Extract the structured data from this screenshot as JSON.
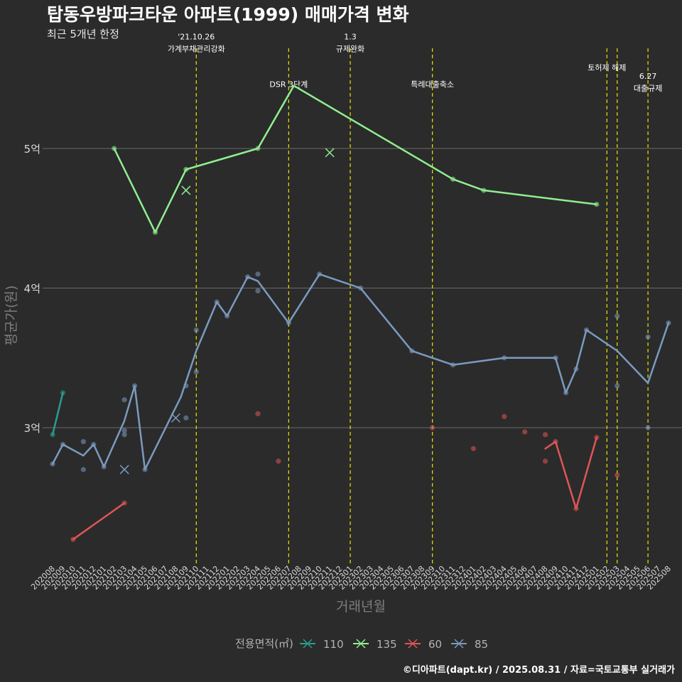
{
  "chart_data": {
    "type": "line",
    "title": "탑동우방파크타운 아파트(1999) 매매가격 변화",
    "subtitle": "최근 5개년 한정",
    "xlabel": "거래년월",
    "ylabel": "평균가(원)",
    "ylim": [
      2.05,
      5.55
    ],
    "yticks": [
      {
        "value": 3,
        "label": "3억"
      },
      {
        "value": 4,
        "label": "4억"
      },
      {
        "value": 5,
        "label": "5억"
      }
    ],
    "categories": [
      "202008",
      "202009",
      "202010",
      "202011",
      "202012",
      "202101",
      "202102",
      "202103",
      "202104",
      "202105",
      "202106",
      "202107",
      "202108",
      "202109",
      "202110",
      "202111",
      "202112",
      "202201",
      "202202",
      "202203",
      "202204",
      "202205",
      "202206",
      "202207",
      "202208",
      "202209",
      "202210",
      "202211",
      "202212",
      "202301",
      "202302",
      "202303",
      "202304",
      "202305",
      "202306",
      "202307",
      "202308",
      "202309",
      "202310",
      "202311",
      "202312",
      "202401",
      "202402",
      "202403",
      "202404",
      "202405",
      "202406",
      "202407",
      "202408",
      "202409",
      "202410",
      "202411",
      "202412",
      "202501",
      "202502",
      "202503",
      "202504",
      "202505",
      "202506",
      "202507",
      "202508"
    ],
    "legend": {
      "title": "전용면적(㎡)",
      "position": "bottom"
    },
    "series": [
      {
        "name": "110",
        "color": "#2a9d8f",
        "line": [
          [
            0,
            2.95
          ],
          [
            1,
            3.25
          ]
        ],
        "points": [
          [
            0,
            2.95
          ],
          [
            1,
            3.25
          ]
        ],
        "crosses": []
      },
      {
        "name": "135",
        "color": "#90ee90",
        "line": [
          [
            6,
            5.0
          ],
          [
            10,
            4.4
          ],
          [
            13,
            4.85
          ],
          [
            20,
            5.0
          ],
          [
            23.5,
            5.45
          ],
          [
            39,
            4.78
          ],
          [
            42,
            4.7
          ],
          [
            53,
            4.6
          ]
        ],
        "points": [
          [
            6,
            5.0
          ],
          [
            10,
            4.4
          ],
          [
            13,
            4.85
          ],
          [
            20,
            5.0
          ],
          [
            39,
            4.78
          ],
          [
            42,
            4.7
          ],
          [
            53,
            4.6
          ]
        ],
        "crosses": [
          [
            13,
            4.7
          ],
          [
            27,
            4.97
          ]
        ]
      },
      {
        "name": "60",
        "color": "#e05555",
        "line_segments": [
          [
            [
              2,
              2.2
            ],
            [
              7,
              2.46
            ]
          ],
          [
            [
              48,
              2.85
            ],
            [
              49,
              2.9
            ],
            [
              51,
              2.42
            ],
            [
              53,
              2.93
            ]
          ]
        ],
        "points": [
          [
            2,
            2.2
          ],
          [
            7,
            2.46
          ],
          [
            20,
            3.1
          ],
          [
            22,
            2.76
          ],
          [
            37,
            3.0
          ],
          [
            41,
            2.85
          ],
          [
            44,
            3.08
          ],
          [
            46,
            2.97
          ],
          [
            48,
            2.95
          ],
          [
            48,
            2.76
          ],
          [
            49,
            2.9
          ],
          [
            51,
            2.42
          ],
          [
            53,
            2.93
          ],
          [
            55,
            2.66
          ]
        ],
        "crosses": []
      },
      {
        "name": "85",
        "color": "#7b9ac0",
        "line": [
          [
            0,
            2.74
          ],
          [
            1,
            2.88
          ],
          [
            3,
            2.8
          ],
          [
            4,
            2.88
          ],
          [
            5,
            2.72
          ],
          [
            7,
            3.05
          ],
          [
            8,
            3.3
          ],
          [
            9,
            2.7
          ],
          [
            12.5,
            3.22
          ],
          [
            14,
            3.55
          ],
          [
            16,
            3.9
          ],
          [
            17,
            3.8
          ],
          [
            19,
            4.08
          ],
          [
            20,
            4.05
          ],
          [
            23,
            3.75
          ],
          [
            26,
            4.1
          ],
          [
            30,
            4.0
          ],
          [
            35,
            3.55
          ],
          [
            39,
            3.45
          ],
          [
            44,
            3.5
          ],
          [
            49,
            3.5
          ],
          [
            50,
            3.25
          ],
          [
            51,
            3.42
          ],
          [
            52,
            3.7
          ],
          [
            55,
            3.55
          ],
          [
            58,
            3.32
          ],
          [
            60,
            3.75
          ]
        ],
        "points": [
          [
            0,
            2.74
          ],
          [
            1,
            2.88
          ],
          [
            3,
            2.9
          ],
          [
            3,
            2.7
          ],
          [
            4,
            2.88
          ],
          [
            5,
            2.72
          ],
          [
            7,
            3.2
          ],
          [
            7,
            2.98
          ],
          [
            7,
            2.95
          ],
          [
            8,
            3.3
          ],
          [
            9,
            2.7
          ],
          [
            13,
            3.3
          ],
          [
            13,
            3.07
          ],
          [
            14,
            3.7
          ],
          [
            14,
            3.4
          ],
          [
            16,
            3.9
          ],
          [
            17,
            3.8
          ],
          [
            19,
            4.08
          ],
          [
            20,
            4.1
          ],
          [
            20,
            3.98
          ],
          [
            23,
            3.75
          ],
          [
            26,
            4.1
          ],
          [
            30,
            4.0
          ],
          [
            35,
            3.55
          ],
          [
            39,
            3.45
          ],
          [
            44,
            3.5
          ],
          [
            49,
            3.5
          ],
          [
            50,
            3.25
          ],
          [
            51,
            3.42
          ],
          [
            52,
            3.7
          ],
          [
            55,
            3.8
          ],
          [
            55,
            3.3
          ],
          [
            58,
            3.65
          ],
          [
            58,
            3.0
          ],
          [
            60,
            3.75
          ]
        ],
        "crosses": [
          [
            7,
            2.7
          ],
          [
            12,
            3.07
          ]
        ]
      }
    ],
    "events": [
      {
        "x": 14,
        "lines": [
          "'21.10.26",
          "가계부채관리강화"
        ],
        "label_y": 5.78
      },
      {
        "x": 23,
        "lines": [
          "DSR 3단계"
        ],
        "label_y": 5.44
      },
      {
        "x": 29,
        "lines": [
          "1.3",
          "규제완화"
        ],
        "label_y": 5.78
      },
      {
        "x": 37,
        "lines": [
          "특례대출축소"
        ],
        "label_y": 5.44
      },
      {
        "x": 54,
        "lines": [
          "토허제 해제"
        ],
        "label_y": 5.56
      },
      {
        "x": 55,
        "lines": [],
        "label_y": 5.5
      },
      {
        "x": 58,
        "lines": [
          "6.27",
          "대출규제"
        ],
        "label_y": 5.5
      }
    ],
    "caption": "©디아파트(dapt.kr) / 2025.08.31 / 자료=국토교통부 실거래가"
  }
}
